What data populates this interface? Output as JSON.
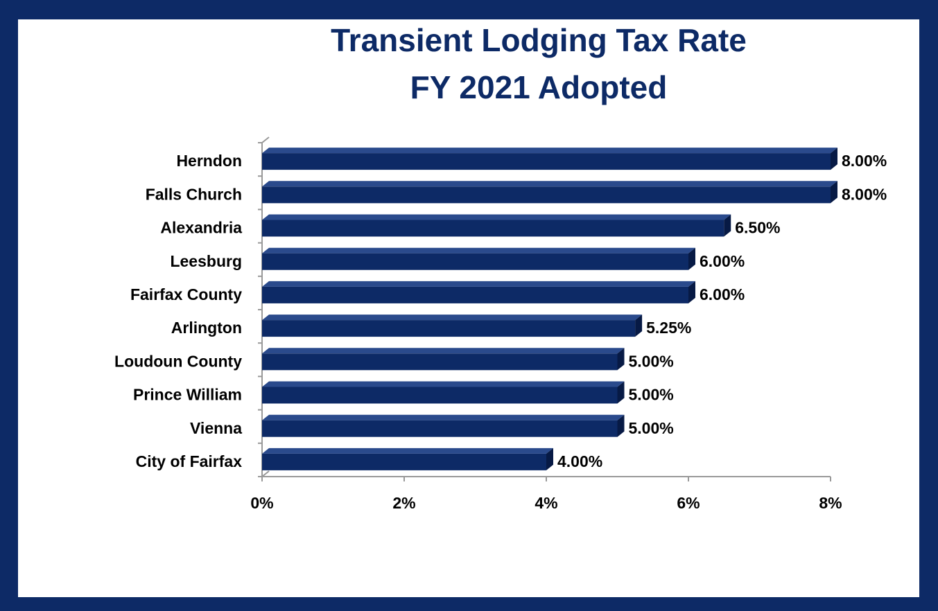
{
  "chart_data": {
    "type": "bar",
    "orientation": "horizontal",
    "title": "Transient Lodging Tax Rate",
    "subtitle": "FY 2021 Adopted",
    "categories": [
      "Herndon",
      "Falls Church",
      "Alexandria",
      "Leesburg",
      "Fairfax County",
      "Arlington",
      "Loudoun County",
      "Prince William",
      "Vienna",
      "City of Fairfax"
    ],
    "values": [
      8,
      8,
      6.5,
      6,
      6,
      5.25,
      5,
      5,
      5,
      4
    ],
    "value_labels": [
      "8.00%",
      "8.00%",
      "6.50%",
      "6.00%",
      "6.00%",
      "5.25%",
      "5.00%",
      "5.00%",
      "5.00%",
      "4.00%"
    ],
    "color": "#0d2a66",
    "xlim": [
      0,
      8
    ],
    "xticks": [
      {
        "value": 0,
        "label": "0%"
      },
      {
        "value": 2,
        "label": "2%"
      },
      {
        "value": 4,
        "label": "4%"
      },
      {
        "value": 6,
        "label": "6%"
      },
      {
        "value": 8,
        "label": "8%"
      }
    ],
    "grid": false
  }
}
